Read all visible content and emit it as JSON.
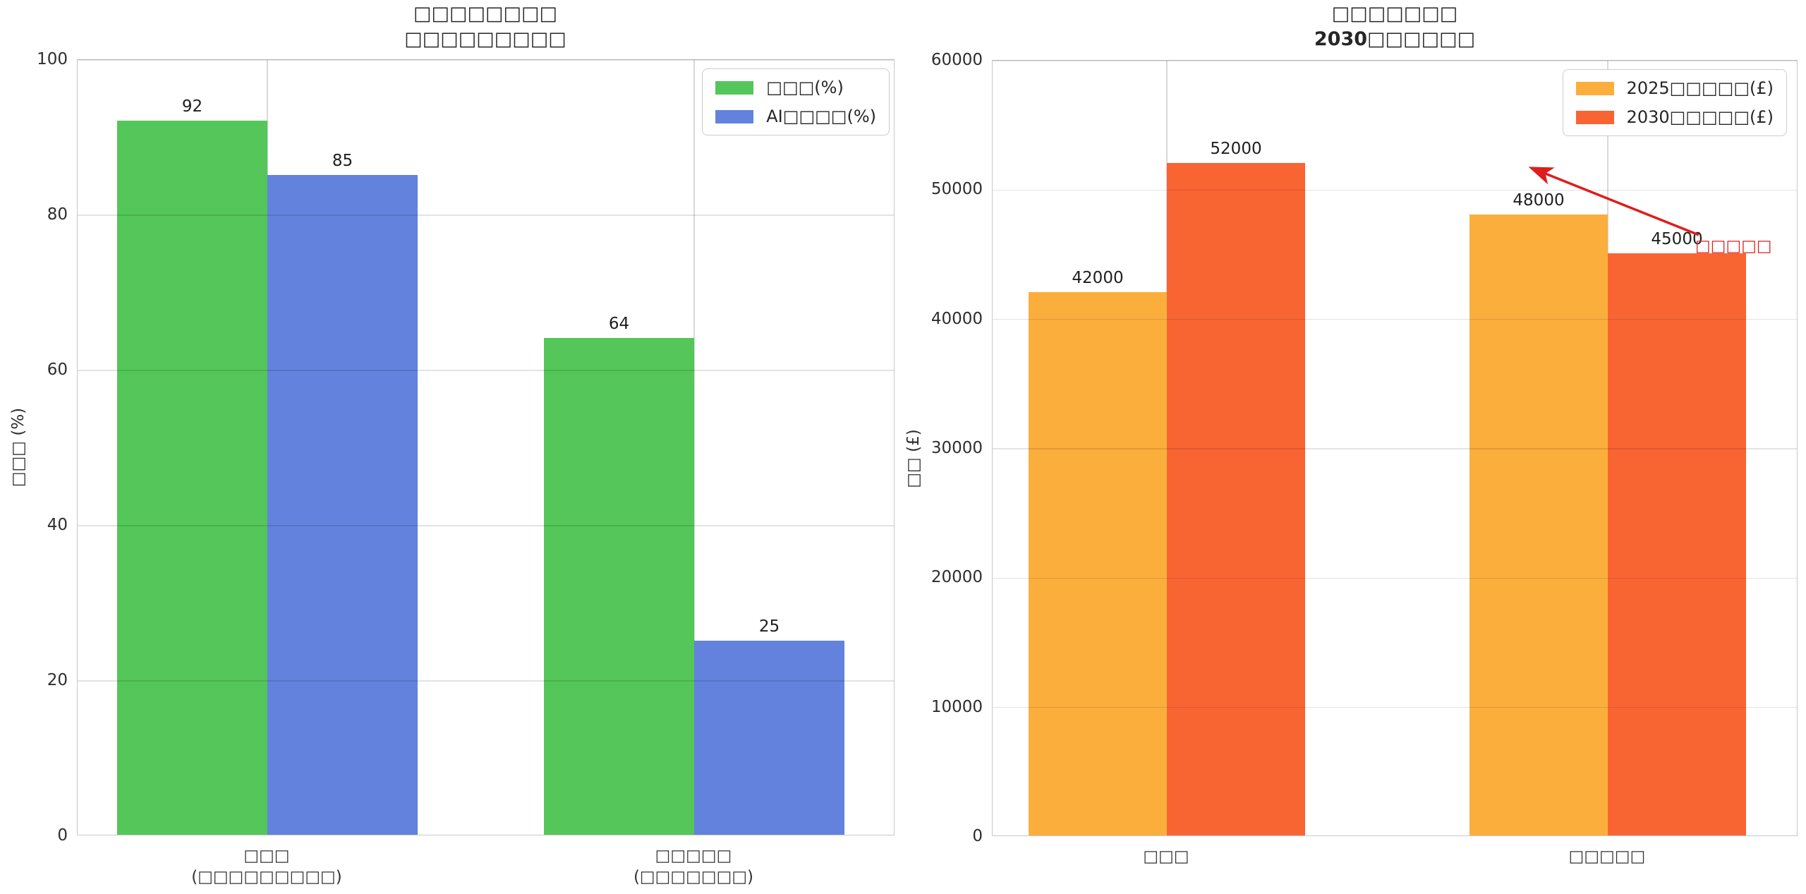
{
  "figure": {
    "background": "#ffffff",
    "grid_color": "#d9d9d9",
    "text_color": "#262626",
    "note": "CJK glyphs missing from font; rendered as tofu boxes"
  },
  "chart_data": [
    {
      "type": "bar",
      "title_lines": [
        "□□□□□□□□",
        "□□□□□□□□□"
      ],
      "ylabel": "□□□ (%)",
      "ylim": [
        0,
        100
      ],
      "yticks": [
        0,
        20,
        40,
        60,
        80,
        100
      ],
      "categories": [
        "□□□\n(□□□□□□□□□)",
        "□□□□□\n(□□□□□□□)"
      ],
      "series": [
        {
          "name": "□□□(%)",
          "color": "#55c659",
          "values": [
            92,
            64
          ]
        },
        {
          "name": "AI□□□□(%)",
          "color": "#6282de",
          "values": [
            85,
            25
          ]
        }
      ],
      "grid": true,
      "legend_position": "upper right"
    },
    {
      "type": "bar",
      "title_lines": [
        "□□□□□□□",
        "2030□□□□□□"
      ],
      "ylabel": "□□ (£)",
      "ylim": [
        0,
        60000
      ],
      "yticks": [
        0,
        10000,
        20000,
        30000,
        40000,
        50000,
        60000
      ],
      "categories": [
        "□□□",
        "□□□□□"
      ],
      "series": [
        {
          "name": "2025□□□□□(£)",
          "color": "#fbae3b",
          "values": [
            42000,
            48000
          ]
        },
        {
          "name": "2030□□□□□(£)",
          "color": "#f96433",
          "values": [
            52000,
            45000
          ]
        }
      ],
      "annotation": {
        "text": "□□□□□",
        "color": "#dd1e1e"
      },
      "grid": true,
      "legend_position": "upper right"
    }
  ]
}
